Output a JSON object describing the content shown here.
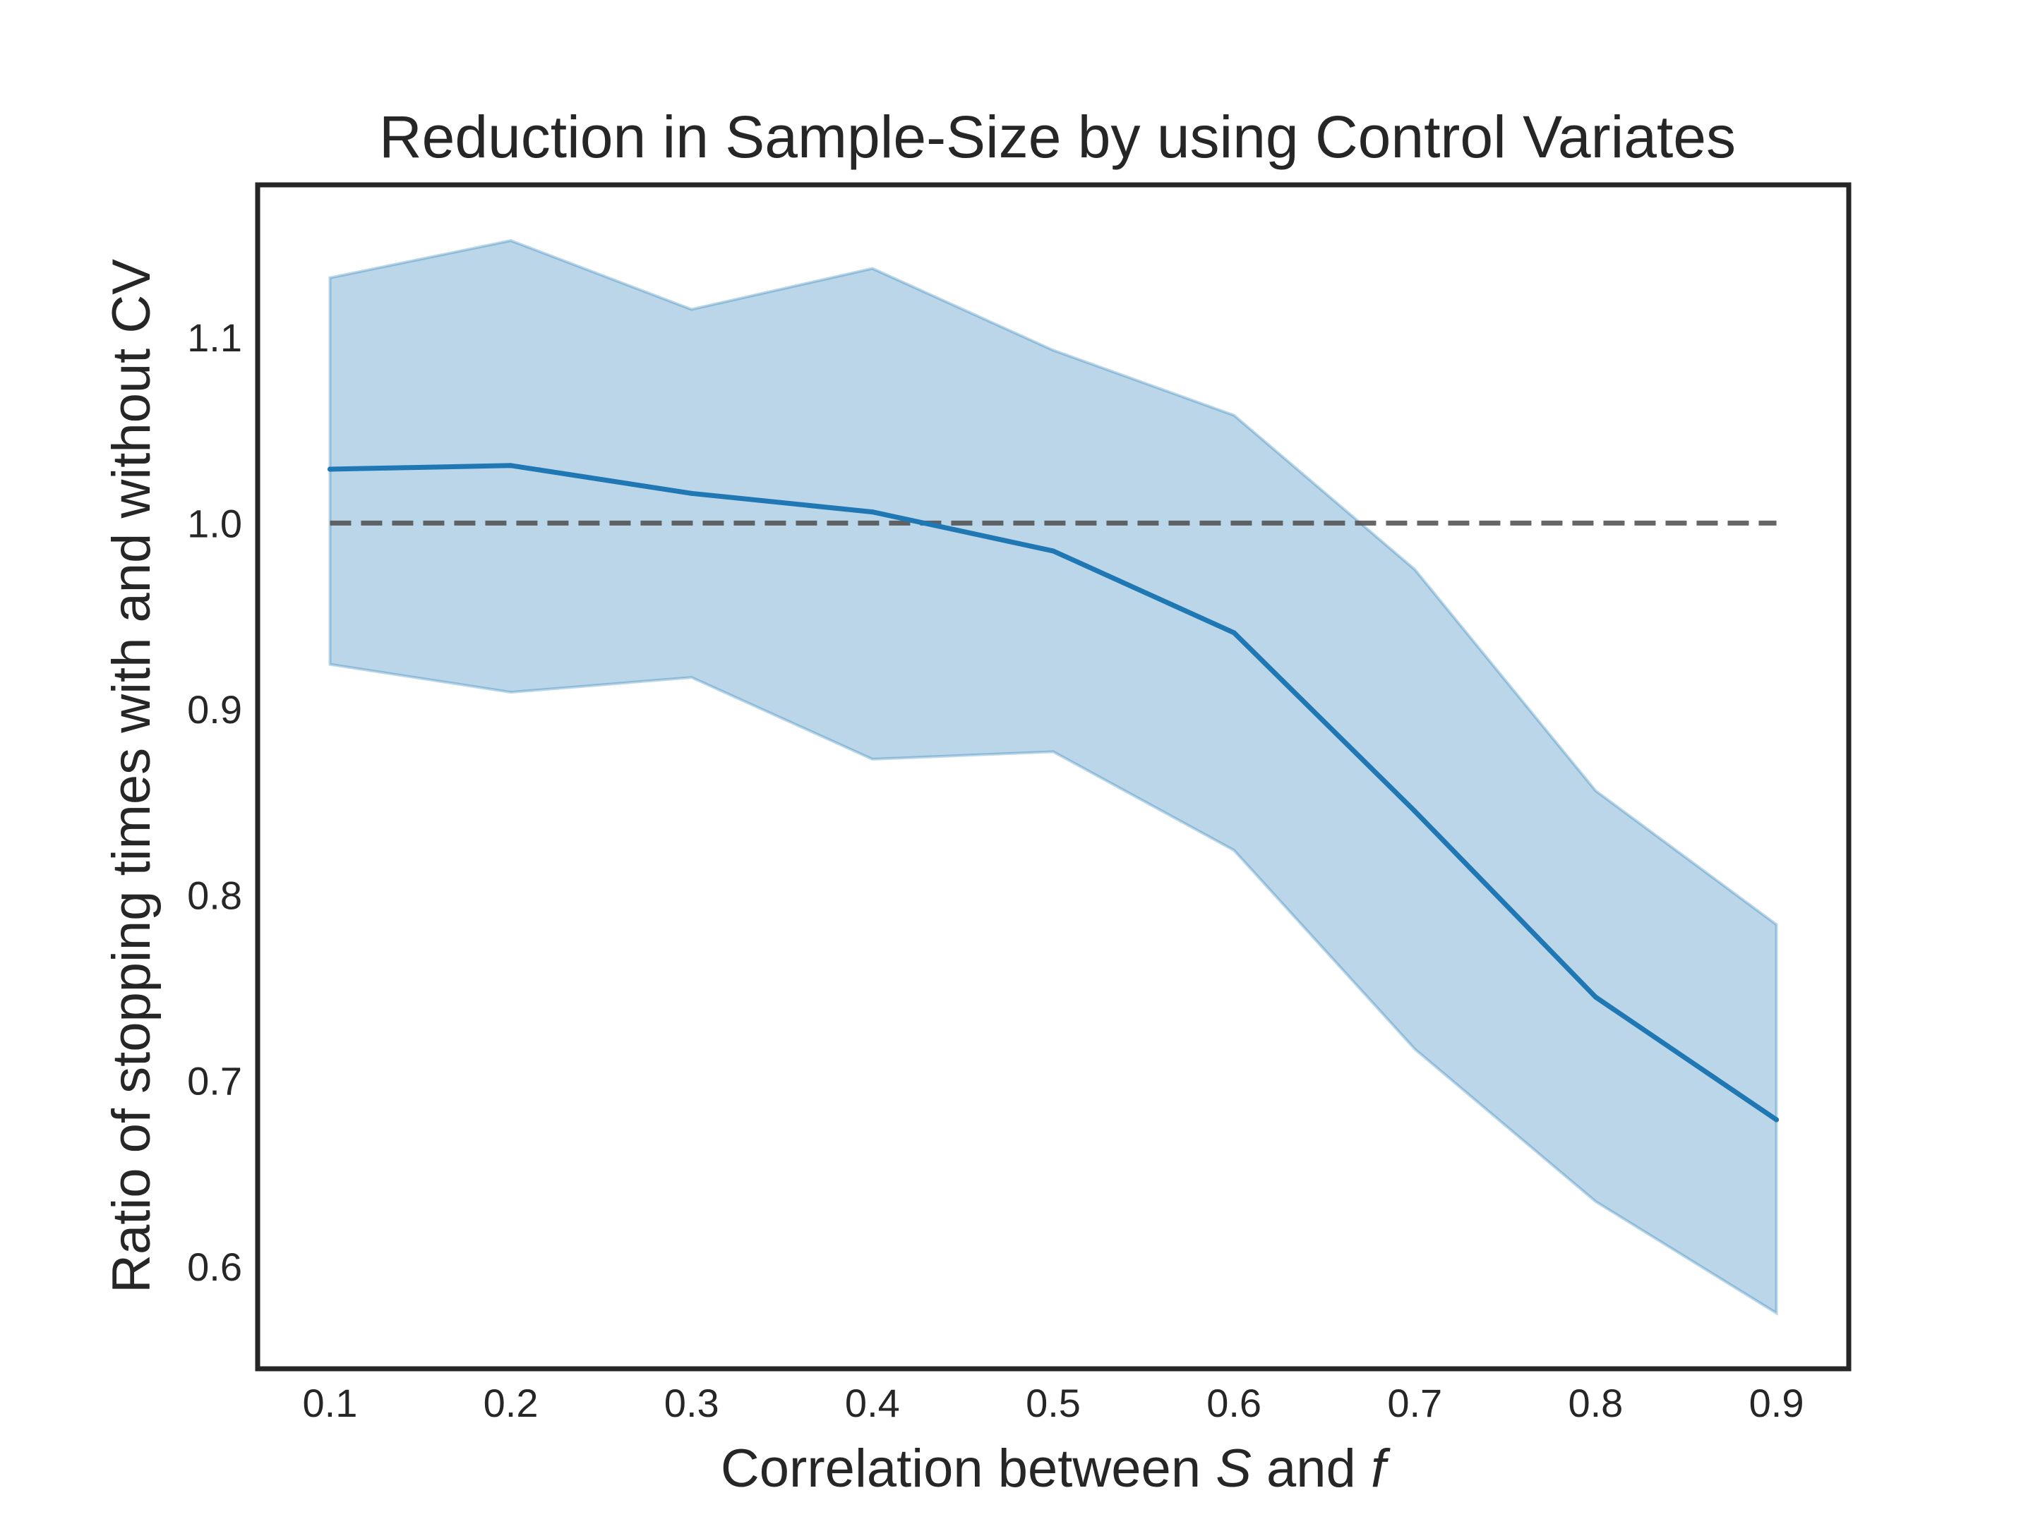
{
  "chart_data": {
    "type": "line",
    "title": "Reduction in Sample-Size by using Control Variates",
    "xlabel": {
      "before": "Correlation between ",
      "var1": "S",
      "middle": " and ",
      "var2": "f"
    },
    "ylabel": "Ratio of stopping times with and without CV",
    "x": [
      0.1,
      0.2,
      0.3,
      0.4,
      0.5,
      0.6,
      0.7,
      0.8,
      0.9
    ],
    "series": [
      {
        "values": [
          1.029,
          1.031,
          1.016,
          1.006,
          0.985,
          0.941,
          0.845,
          0.745,
          0.679
        ],
        "upper": [
          1.132,
          1.152,
          1.115,
          1.137,
          1.093,
          1.058,
          0.975,
          0.856,
          0.784
        ],
        "lower": [
          0.924,
          0.909,
          0.917,
          0.873,
          0.877,
          0.824,
          0.717,
          0.635,
          0.575
        ],
        "color": "#1f77b4",
        "band_color": "#1f77b4"
      }
    ],
    "reference_line": {
      "y": 1.0,
      "x_range": [
        0.1,
        0.9
      ],
      "style": "dashed",
      "color": "#555555"
    },
    "xticks": [
      "0.1",
      "0.2",
      "0.3",
      "0.4",
      "0.5",
      "0.6",
      "0.7",
      "0.8",
      "0.9"
    ],
    "yticks": [
      "0.6",
      "0.7",
      "0.8",
      "0.9",
      "1.0",
      "1.1"
    ],
    "xlim": [
      0.06,
      0.94
    ],
    "ylim": [
      0.545,
      1.182
    ],
    "grid": false,
    "legend": "none"
  }
}
